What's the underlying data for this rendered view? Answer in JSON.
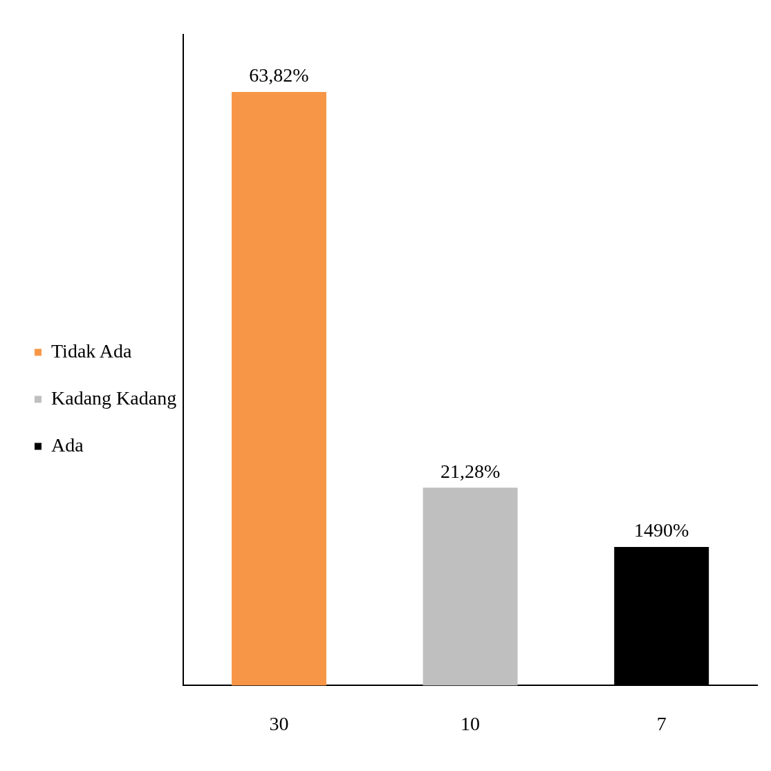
{
  "chart_data": {
    "type": "bar",
    "categories": [
      "30",
      "10",
      "7"
    ],
    "stacked": true,
    "series": [
      {
        "name": "Tidak Ada",
        "color": "#f79646",
        "values": [
          63.82,
          null,
          null
        ],
        "value_labels": [
          "63,82%",
          null,
          null
        ]
      },
      {
        "name": "Kadang Kadang",
        "color": "#bfbfbf",
        "values": [
          null,
          21.28,
          null
        ],
        "value_labels": [
          null,
          "21,28%",
          null
        ]
      },
      {
        "name": "Ada",
        "color": "#000000",
        "values": [
          null,
          null,
          14.9
        ],
        "value_labels": [
          null,
          null,
          "1490%"
        ]
      }
    ],
    "tick_labels": "x",
    "legend": "left",
    "grid": false
  }
}
